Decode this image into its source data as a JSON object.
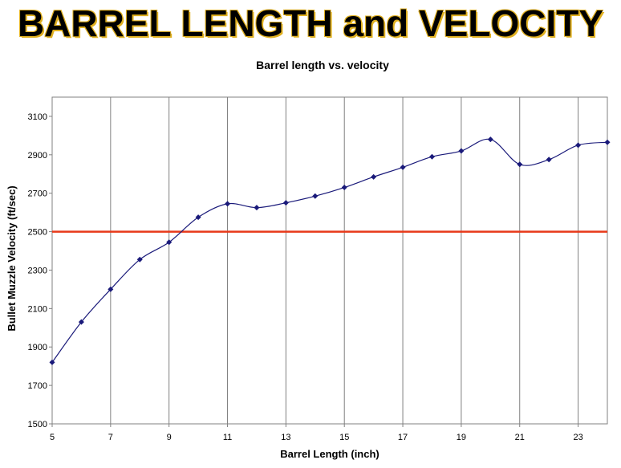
{
  "header": {
    "title": "BARREL LENGTH and VELOCITY"
  },
  "chart_data": {
    "type": "line",
    "title": "Barrel length vs. velocity",
    "xlabel": "Barrel Length (inch)",
    "ylabel": "Bullet Muzzle Velocity (ft/sec)",
    "xlim": [
      5,
      24
    ],
    "ylim": [
      1500,
      3200
    ],
    "xticks": [
      5,
      7,
      9,
      11,
      13,
      15,
      17,
      19,
      21,
      23
    ],
    "yticks": [
      1500,
      1700,
      1900,
      2100,
      2300,
      2500,
      2700,
      2900,
      3100
    ],
    "grid": "vertical",
    "series": [
      {
        "color": "#1a1a7a",
        "x": [
          5,
          6,
          7,
          8,
          9,
          10,
          11,
          12,
          13,
          14,
          15,
          16,
          17,
          18,
          19,
          20,
          21,
          22,
          23,
          24
        ],
        "y": [
          1820,
          2030,
          2200,
          2355,
          2445,
          2575,
          2645,
          2625,
          2650,
          2685,
          2730,
          2785,
          2835,
          2890,
          2920,
          2980,
          2850,
          2875,
          2950,
          2965
        ]
      }
    ],
    "reference_line": {
      "y": 2500,
      "color": "#e8391a"
    }
  }
}
